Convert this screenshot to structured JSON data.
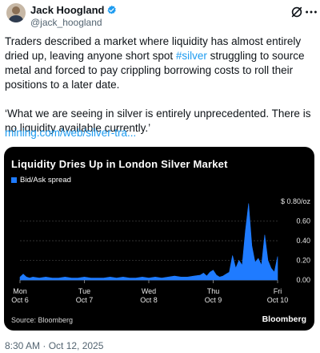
{
  "author": {
    "name": "Jack Hoogland",
    "handle": "@jack_hoogland"
  },
  "tweet": {
    "para1_before": "Traders described a market where liquidity has almost entirely dried up, leaving anyone short spot ",
    "hashtag": "#silver",
    "para1_after": " struggling to source metal and forced to pay crippling borrowing costs to roll their positions to a later date.",
    "para2": "‘What we are seeing in silver is entirely unprecedented. There is no liquidity available currently.’",
    "link": "mining.com/web/silver-tra..."
  },
  "card": {
    "source": "Source: Bloomberg",
    "brand": "Bloomberg"
  },
  "timestamp": "8:30 AM · Oct 12, 2025",
  "colors": {
    "series": "#1f7bff",
    "link": "#1d9bf0",
    "verified": "#1d9bf0"
  },
  "icons": [
    "avatar",
    "verified-badge-icon",
    "grok-icon",
    "more-icon"
  ],
  "chart_data": {
    "type": "area",
    "title": "Liquidity Dries Up in London Silver Market",
    "unit": "$ 0.80/oz",
    "ylim": [
      0,
      0.85
    ],
    "y_ticks": [
      0.6,
      0.4,
      0.2,
      0.0
    ],
    "y_tick_labels": [
      "0.60",
      "0.40",
      "0.20",
      "0.00"
    ],
    "x_ticks": [
      {
        "day": "Mon",
        "date": "Oct 6",
        "x": 0
      },
      {
        "day": "Tue",
        "date": "Oct 7",
        "x": 1
      },
      {
        "day": "Wed",
        "date": "Oct 8",
        "x": 2
      },
      {
        "day": "Thu",
        "date": "Oct 9",
        "x": 3
      },
      {
        "day": "Fri",
        "date": "Oct 10",
        "x": 4
      }
    ],
    "xlim": [
      0,
      4
    ],
    "series": [
      {
        "name": "Bid/Ask spread",
        "x": [
          0,
          0.05,
          0.1,
          0.15,
          0.2,
          0.3,
          0.4,
          0.5,
          0.6,
          0.7,
          0.8,
          0.9,
          1.0,
          1.1,
          1.2,
          1.3,
          1.4,
          1.5,
          1.6,
          1.7,
          1.8,
          1.9,
          2.0,
          2.1,
          2.2,
          2.3,
          2.4,
          2.5,
          2.6,
          2.7,
          2.8,
          2.85,
          2.9,
          2.95,
          3.0,
          3.05,
          3.1,
          3.15,
          3.2,
          3.25,
          3.3,
          3.35,
          3.4,
          3.45,
          3.5,
          3.55,
          3.6,
          3.65,
          3.7,
          3.75,
          3.8,
          3.85,
          3.9,
          3.95,
          4.0
        ],
        "values": [
          0.03,
          0.06,
          0.03,
          0.02,
          0.03,
          0.02,
          0.03,
          0.02,
          0.02,
          0.03,
          0.02,
          0.02,
          0.03,
          0.02,
          0.02,
          0.02,
          0.03,
          0.02,
          0.03,
          0.02,
          0.02,
          0.03,
          0.02,
          0.03,
          0.02,
          0.03,
          0.04,
          0.03,
          0.03,
          0.04,
          0.05,
          0.07,
          0.04,
          0.08,
          0.1,
          0.05,
          0.03,
          0.04,
          0.06,
          0.08,
          0.25,
          0.12,
          0.2,
          0.15,
          0.5,
          0.78,
          0.35,
          0.18,
          0.22,
          0.15,
          0.46,
          0.2,
          0.12,
          0.08,
          0.24
        ]
      }
    ]
  }
}
